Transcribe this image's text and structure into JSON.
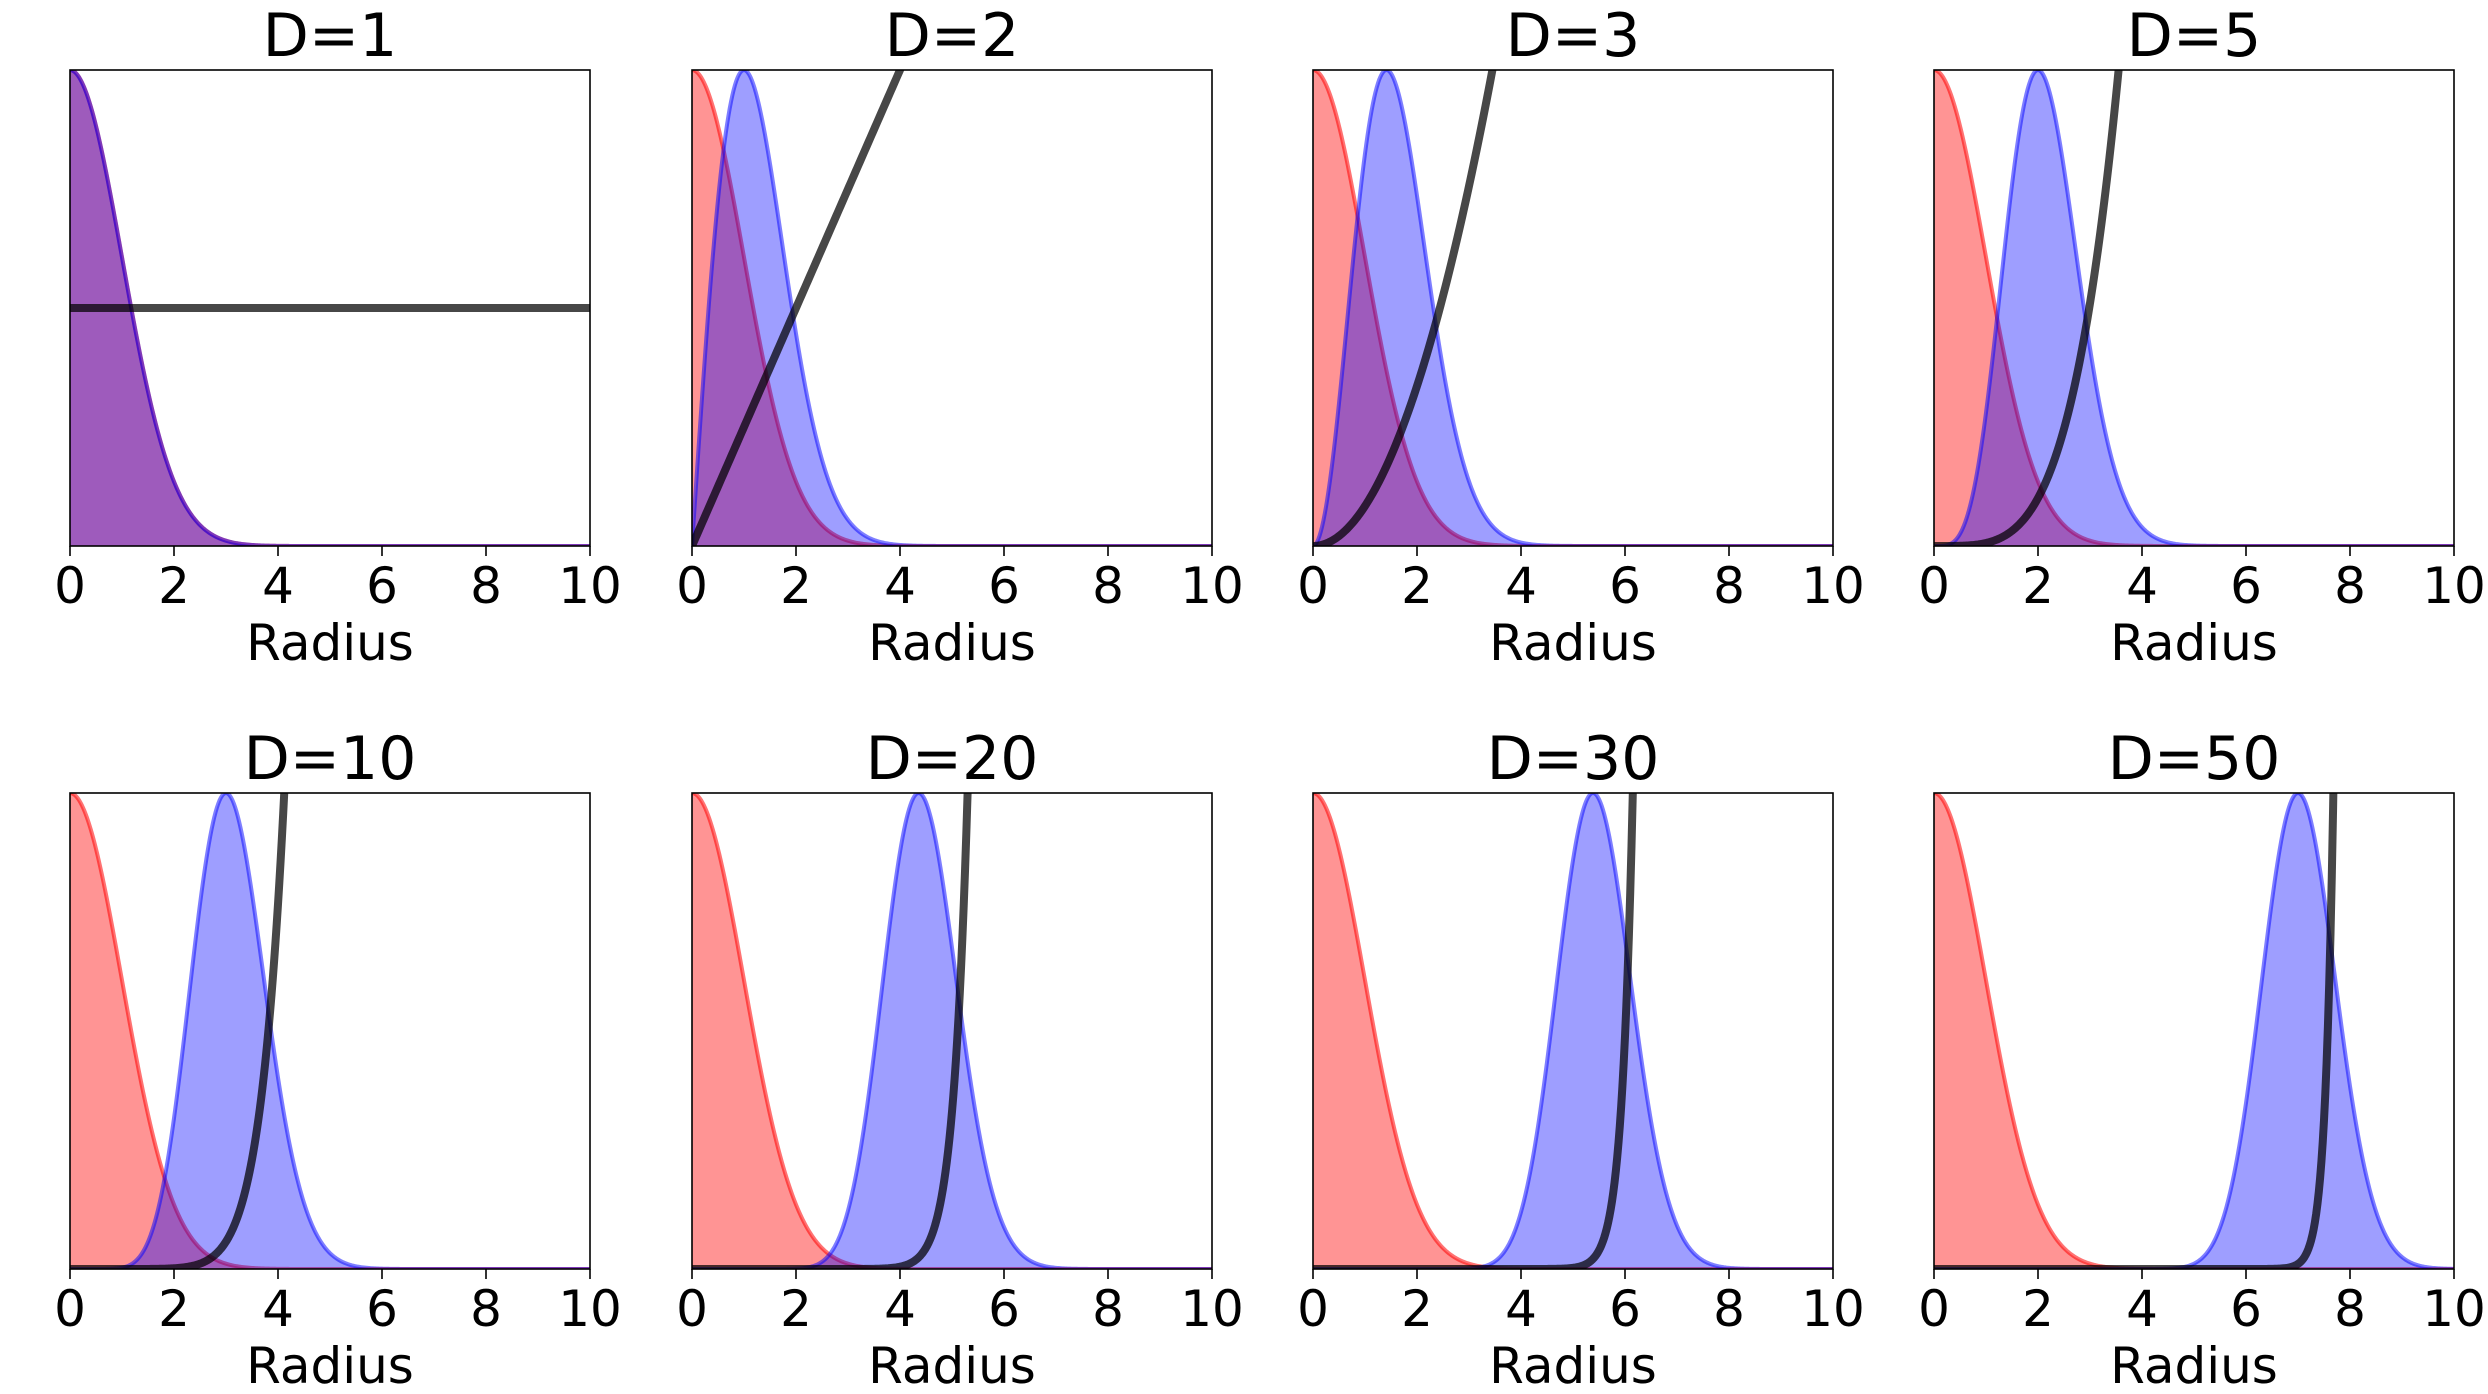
{
  "chart_data": [
    {
      "type": "area",
      "title": "D=1",
      "D": 1,
      "xlabel": "Radius",
      "xlim": [
        0,
        10
      ],
      "xticks": [
        0,
        2,
        4,
        6,
        8,
        10
      ],
      "yticks": [],
      "series": [
        "Gaussian density in radius (red)",
        "Radial density of D-dim Gaussian (blue)",
        "Volume factor r^(D-1) (black)"
      ]
    },
    {
      "type": "area",
      "title": "D=2",
      "D": 2,
      "xlabel": "Radius",
      "xlim": [
        0,
        10
      ],
      "xticks": [
        0,
        2,
        4,
        6,
        8,
        10
      ],
      "yticks": []
    },
    {
      "type": "area",
      "title": "D=3",
      "D": 3,
      "xlabel": "Radius",
      "xlim": [
        0,
        10
      ],
      "xticks": [
        0,
        2,
        4,
        6,
        8,
        10
      ],
      "yticks": []
    },
    {
      "type": "area",
      "title": "D=5",
      "D": 5,
      "xlabel": "Radius",
      "xlim": [
        0,
        10
      ],
      "xticks": [
        0,
        2,
        4,
        6,
        8,
        10
      ],
      "yticks": []
    },
    {
      "type": "area",
      "title": "D=10",
      "D": 10,
      "xlabel": "Radius",
      "xlim": [
        0,
        10
      ],
      "xticks": [
        0,
        2,
        4,
        6,
        8,
        10
      ],
      "yticks": []
    },
    {
      "type": "area",
      "title": "D=20",
      "D": 20,
      "xlabel": "Radius",
      "xlim": [
        0,
        10
      ],
      "xticks": [
        0,
        2,
        4,
        6,
        8,
        10
      ],
      "yticks": []
    },
    {
      "type": "area",
      "title": "D=30",
      "D": 30,
      "xlabel": "Radius",
      "xlim": [
        0,
        10
      ],
      "xticks": [
        0,
        2,
        4,
        6,
        8,
        10
      ],
      "yticks": []
    },
    {
      "type": "area",
      "title": "D=50",
      "D": 50,
      "xlabel": "Radius",
      "xlim": [
        0,
        10
      ],
      "xticks": [
        0,
        2,
        4,
        6,
        8,
        10
      ],
      "yticks": []
    }
  ],
  "colors": {
    "red": "#ff0000",
    "blue": "#0000ff",
    "black": "#000000"
  }
}
